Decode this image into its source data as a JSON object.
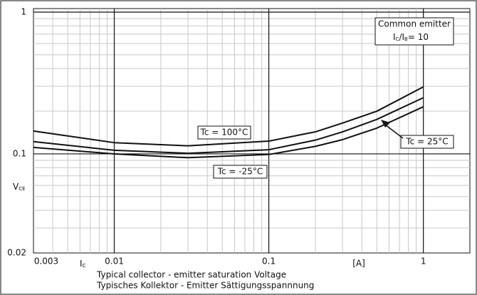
{
  "chart_data": {
    "type": "line",
    "log_x": true,
    "log_y": true,
    "xlim": [
      0.003,
      2
    ],
    "ylim": [
      0.02,
      1
    ],
    "xticks": [
      0.003,
      0.01,
      0.1,
      1
    ],
    "yticks": [
      0.02,
      0.1,
      1
    ],
    "x_major_grid": [
      0.01,
      0.1,
      1
    ],
    "y_major_grid": [
      0.1,
      1
    ],
    "x_minor_grid": [
      0.004,
      0.005,
      0.006,
      0.007,
      0.008,
      0.009,
      0.02,
      0.03,
      0.04,
      0.05,
      0.06,
      0.07,
      0.08,
      0.09,
      0.2,
      0.3,
      0.4,
      0.5,
      0.6,
      0.7,
      0.8,
      0.9
    ],
    "y_minor_grid": [
      0.03,
      0.04,
      0.05,
      0.06,
      0.07,
      0.08,
      0.09,
      0.2,
      0.3,
      0.4,
      0.5,
      0.6,
      0.7,
      0.8,
      0.9
    ],
    "y_label": [
      "V",
      "CE"
    ],
    "x_label": [
      "I",
      "C"
    ],
    "x_unit": "[A]",
    "caption": [
      "Typical collector - emitter saturation Voltage",
      "Typisches Kollektor - Emitter Sättigungsspannnung"
    ],
    "legend_box": [
      "Common emitter",
      [
        "I",
        "C",
        "/I",
        "B",
        "= 10"
      ]
    ],
    "x": [
      0.003,
      0.01,
      0.03,
      0.1,
      0.2,
      0.3,
      0.5,
      1
    ],
    "series": [
      {
        "name": "Tc = 100°C",
        "color": "#111111",
        "values": [
          0.145,
          0.12,
          0.114,
          0.123,
          0.143,
          0.165,
          0.2,
          0.297
        ]
      },
      {
        "name": "Tc = 25°C",
        "color": "#111111",
        "values": [
          0.122,
          0.106,
          0.101,
          0.107,
          0.125,
          0.143,
          0.175,
          0.249
        ]
      },
      {
        "name": "Tc = -25°C",
        "color": "#111111",
        "values": [
          0.111,
          0.1,
          0.094,
          0.099,
          0.113,
          0.126,
          0.152,
          0.215
        ]
      }
    ]
  }
}
